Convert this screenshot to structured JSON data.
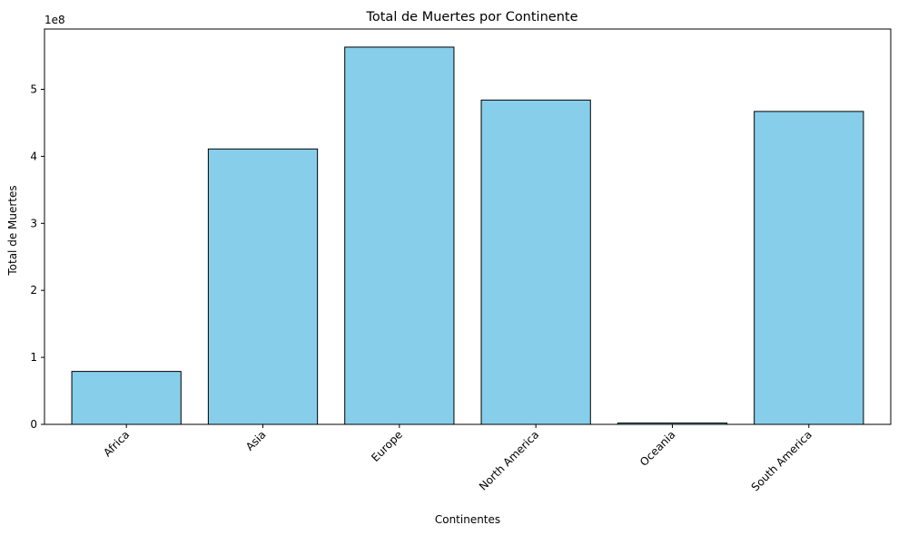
{
  "chart_data": {
    "type": "bar",
    "title": "Total de Muertes por Continente",
    "xlabel": "Continentes",
    "ylabel": "Total de Muertes",
    "y_offset_label": "1e8",
    "categories": [
      "Africa",
      "Asia",
      "Europe",
      "North America",
      "Oceania",
      "South America"
    ],
    "values": [
      0.79,
      4.11,
      5.63,
      4.84,
      0.02,
      4.67
    ],
    "value_scale": 100000000,
    "ylim": [
      0,
      5.9
    ],
    "yticks": [
      0,
      1,
      2,
      3,
      4,
      5
    ],
    "bar_color": "#87CEEB",
    "bar_edge_color": "#000000",
    "grid": false,
    "legend": "none"
  }
}
